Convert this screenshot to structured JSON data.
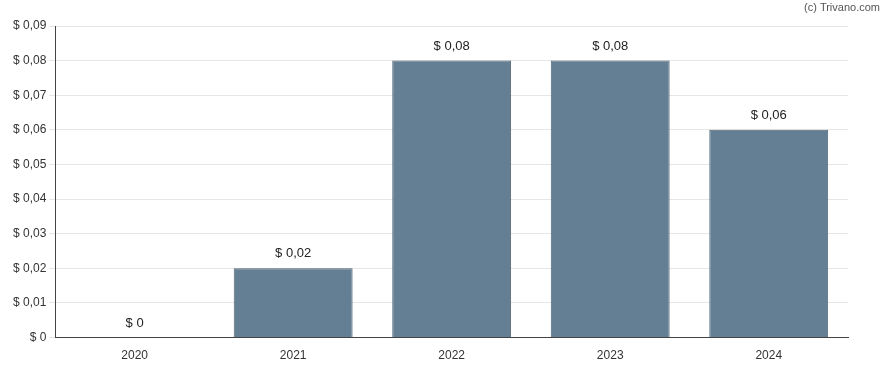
{
  "chart_data": {
    "type": "bar",
    "annotations": [
      "(c) Trivano.com"
    ],
    "categories": [
      "2020",
      "2021",
      "2022",
      "2023",
      "2024"
    ],
    "values": [
      0,
      0.02,
      0.08,
      0.08,
      0.06
    ],
    "value_labels": [
      "$ 0",
      "$ 0,02",
      "$ 0,08",
      "$ 0,08",
      "$ 0,06"
    ],
    "data_labels": true,
    "color": "#647f93",
    "ylim": [
      0,
      0.09
    ],
    "yticks": [
      {
        "value": 0,
        "label": "$ 0"
      },
      {
        "value": 0.01,
        "label": "$ 0,01"
      },
      {
        "value": 0.02,
        "label": "$ 0,02"
      },
      {
        "value": 0.03,
        "label": "$ 0,03"
      },
      {
        "value": 0.04,
        "label": "$ 0,04"
      },
      {
        "value": 0.05,
        "label": "$ 0,05"
      },
      {
        "value": 0.06,
        "label": "$ 0,06"
      },
      {
        "value": 0.07,
        "label": "$ 0,07"
      },
      {
        "value": 0.08,
        "label": "$ 0,08"
      },
      {
        "value": 0.09,
        "label": "$ 0,09"
      }
    ],
    "grid": true
  }
}
